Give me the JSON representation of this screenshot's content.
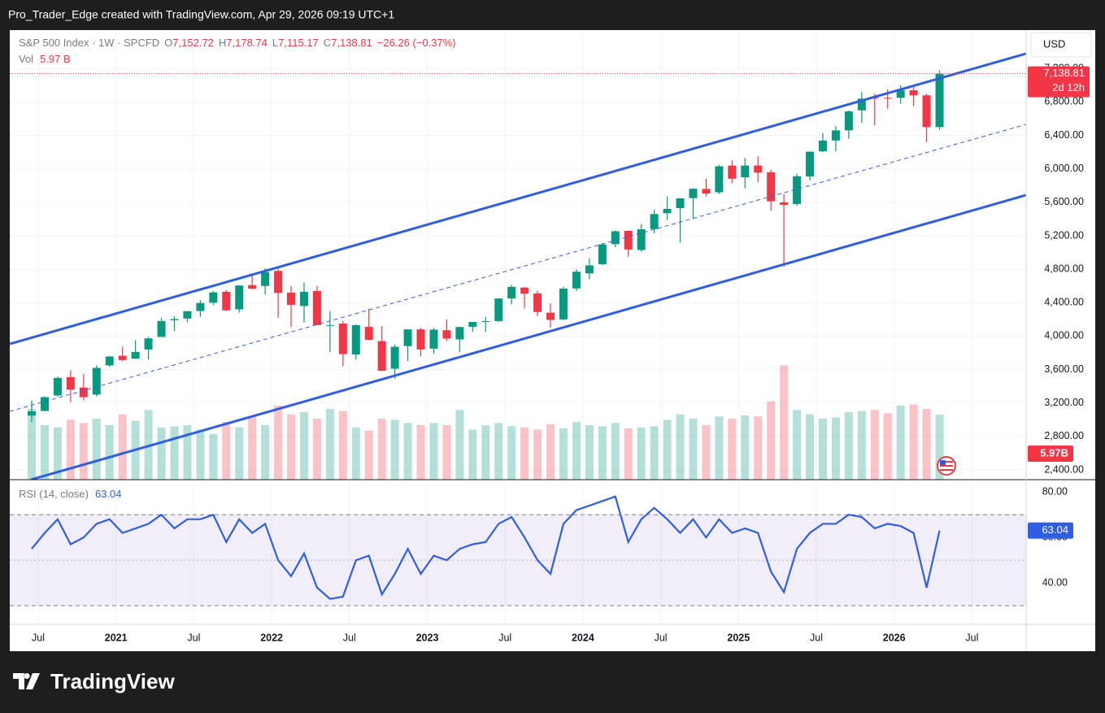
{
  "header": "Pro_Trader_Edge created with TradingView.com, Apr 29, 2026 09:19 UTC+1",
  "footer": "TradingView",
  "chart_data": {
    "type": "candlestick",
    "title": "S&P 500 Index · 1W · SPCFD",
    "currency": "USD",
    "legend": {
      "o": "O",
      "open": "7,152.72",
      "h": "H",
      "high": "7,178.74",
      "l": "L",
      "low": "7,115.17",
      "c": "C",
      "close": "7,138.81",
      "change": "−26.26 (−0.37%)",
      "vol": "Vol",
      "volume": "5.97 B"
    },
    "last_price": {
      "value": 7138.81,
      "label": "7,138.81"
    },
    "countdown": "2d 12h",
    "up_color": "#089981",
    "down_color": "#f23645",
    "grid": true,
    "categories": [
      "2020-06",
      "2020-07",
      "2020-08",
      "2020-09",
      "2020-10",
      "2020-11",
      "2020-12",
      "2021-01",
      "2021-02",
      "2021-03",
      "2021-04",
      "2021-05",
      "2021-06",
      "2021-07",
      "2021-08",
      "2021-09",
      "2021-10",
      "2021-11",
      "2021-12",
      "2022-01",
      "2022-02",
      "2022-03",
      "2022-04",
      "2022-05",
      "2022-06",
      "2022-07",
      "2022-08",
      "2022-09",
      "2022-10",
      "2022-11",
      "2022-12",
      "2023-01",
      "2023-02",
      "2023-03",
      "2023-04",
      "2023-05",
      "2023-06",
      "2023-07",
      "2023-08",
      "2023-09",
      "2023-10",
      "2023-11",
      "2023-12",
      "2024-01",
      "2024-02",
      "2024-03",
      "2024-04",
      "2024-05",
      "2024-06",
      "2024-07",
      "2024-08",
      "2024-09",
      "2024-10",
      "2024-11",
      "2024-12",
      "2025-01",
      "2025-02",
      "2025-03",
      "2025-04",
      "2025-05",
      "2025-06",
      "2025-07",
      "2025-08",
      "2025-09",
      "2025-10",
      "2025-11",
      "2025-12",
      "2026-01",
      "2026-02",
      "2026-03",
      "2026-04"
    ],
    "open": [
      3050,
      3105,
      3290,
      3510,
      3385,
      3300,
      3650,
      3765,
      3730,
      3840,
      3990,
      4190,
      4210,
      4300,
      4400,
      4530,
      4320,
      4610,
      4600,
      4780,
      4520,
      4360,
      4540,
      4130,
      4150,
      3780,
      4110,
      3940,
      3610,
      3880,
      4080,
      3850,
      4070,
      3960,
      4110,
      4170,
      4180,
      4450,
      4580,
      4510,
      4280,
      4200,
      4570,
      4750,
      4860,
      5100,
      5260,
      5030,
      5280,
      5470,
      5530,
      5650,
      5760,
      5720,
      6040,
      5900,
      6040,
      5960,
      5600,
      5580,
      5910,
      6210,
      6340,
      6460,
      6700,
      6850,
      6850,
      6850,
      6940,
      6880,
      6500
    ],
    "high": [
      3230,
      3280,
      3515,
      3590,
      3550,
      3650,
      3760,
      3870,
      3950,
      3990,
      4220,
      4240,
      4300,
      4430,
      4540,
      4550,
      4610,
      4745,
      4810,
      4820,
      4600,
      4640,
      4600,
      4300,
      4180,
      4140,
      4330,
      4120,
      3900,
      4080,
      4100,
      4100,
      4200,
      4110,
      4170,
      4230,
      4450,
      4610,
      4590,
      4540,
      4390,
      4590,
      4800,
      4930,
      5110,
      5265,
      5260,
      5340,
      5510,
      5670,
      5650,
      5770,
      5880,
      6050,
      6100,
      6130,
      6150,
      5990,
      5700,
      5940,
      6210,
      6430,
      6510,
      6700,
      6920,
      6900,
      6950,
      7000,
      6980,
      6900,
      7178.74
    ],
    "low": [
      2970,
      3100,
      3280,
      3210,
      3230,
      3280,
      3630,
      3700,
      3725,
      3720,
      3990,
      4060,
      4165,
      4230,
      4370,
      4300,
      4280,
      4560,
      4500,
      4220,
      4110,
      4160,
      4130,
      3810,
      3640,
      3720,
      3950,
      3580,
      3490,
      3700,
      3760,
      3790,
      3940,
      3810,
      4050,
      4050,
      4170,
      4380,
      4330,
      4240,
      4100,
      4190,
      4540,
      4680,
      4850,
      5060,
      4950,
      5010,
      5230,
      5390,
      5120,
      5400,
      5670,
      5700,
      5830,
      5770,
      5840,
      5500,
      4830,
      5560,
      5860,
      6200,
      6210,
      6360,
      6550,
      6520,
      6720,
      6780,
      6750,
      6320,
      6470
    ],
    "close": [
      3100,
      3270,
      3500,
      3360,
      3270,
      3620,
      3756,
      3714,
      3811,
      3973,
      4181,
      4204,
      4298,
      4395,
      4523,
      4308,
      4605,
      4567,
      4766,
      4516,
      4374,
      4530,
      4132,
      4132,
      3785,
      4130,
      3955,
      3586,
      3872,
      4080,
      3840,
      4077,
      3970,
      4109,
      4169,
      4180,
      4450,
      4589,
      4508,
      4288,
      4194,
      4568,
      4770,
      4846,
      5096,
      5254,
      5036,
      5278,
      5460,
      5522,
      5648,
      5762,
      5705,
      6032,
      5882,
      6040,
      5955,
      5612,
      5569,
      5912,
      6205,
      6339,
      6460,
      6688,
      6840,
      6849,
      6845,
      6940,
      6880,
      6500,
      7138.81
    ],
    "ylim": [
      2283,
      7660
    ],
    "yticks": [
      {
        "value": 2400,
        "label": "2,400.00"
      },
      {
        "value": 2800,
        "label": "2,800.00"
      },
      {
        "value": 3200,
        "label": "3,200.00"
      },
      {
        "value": 3600,
        "label": "3,600.00"
      },
      {
        "value": 4000,
        "label": "4,000.00"
      },
      {
        "value": 4400,
        "label": "4,400.00"
      },
      {
        "value": 4800,
        "label": "4,800.00"
      },
      {
        "value": 5200,
        "label": "5,200.00"
      },
      {
        "value": 5600,
        "label": "5,600.00"
      },
      {
        "value": 6000,
        "label": "6,000.00"
      },
      {
        "value": 6400,
        "label": "6,400.00"
      },
      {
        "value": 6800,
        "label": "6,800.00"
      },
      {
        "value": 7200,
        "label": "7,200.00"
      }
    ],
    "xticks": [
      {
        "value": "2020-07",
        "label": "Jul"
      },
      {
        "value": "2021-01",
        "label": "2021"
      },
      {
        "value": "2021-07",
        "label": "Jul"
      },
      {
        "value": "2022-01",
        "label": "2022"
      },
      {
        "value": "2022-07",
        "label": "Jul"
      },
      {
        "value": "2023-01",
        "label": "2023"
      },
      {
        "value": "2023-07",
        "label": "Jul"
      },
      {
        "value": "2024-01",
        "label": "2024"
      },
      {
        "value": "2024-07",
        "label": "Jul"
      },
      {
        "value": "2025-01",
        "label": "2025"
      },
      {
        "value": "2025-07",
        "label": "Jul"
      },
      {
        "value": "2026-01",
        "label": "2026"
      },
      {
        "value": "2026-07",
        "label": "Jul"
      }
    ],
    "volume": {
      "label": "5.97B",
      "values": [
        6.5,
        5.0,
        4.8,
        5.5,
        5.2,
        5.6,
        5.0,
        6.0,
        5.4,
        6.4,
        4.8,
        4.9,
        5.0,
        4.6,
        4.2,
        5.3,
        4.8,
        5.8,
        5.0,
        6.8,
        6.0,
        6.2,
        5.6,
        6.5,
        6.3,
        4.8,
        4.5,
        5.6,
        5.5,
        5.2,
        5.0,
        5.2,
        5.0,
        6.4,
        4.6,
        5.0,
        5.2,
        4.9,
        4.8,
        4.6,
        5.1,
        4.7,
        5.3,
        5.0,
        4.9,
        5.2,
        4.7,
        4.8,
        4.9,
        5.5,
        6.0,
        5.6,
        5.0,
        5.8,
        5.6,
        5.9,
        5.8,
        7.2,
        10.5,
        6.4,
        6.0,
        5.6,
        5.7,
        6.2,
        6.3,
        6.4,
        6.1,
        6.8,
        6.9,
        6.5,
        5.97
      ]
    },
    "rsi": {
      "name": "RSI (14, close)",
      "color": "#2f5fe0",
      "values": [
        55,
        62,
        68,
        57,
        60,
        66,
        68,
        62,
        64,
        66,
        70,
        64,
        68,
        68,
        70,
        58,
        68,
        62,
        66,
        50,
        43,
        53,
        38,
        33,
        34,
        50,
        52,
        35,
        44,
        55,
        44,
        52,
        50,
        55,
        57,
        58,
        66,
        69,
        60,
        50,
        44,
        66,
        72,
        74,
        76,
        78,
        58,
        68,
        73,
        68,
        62,
        68,
        60,
        68,
        62,
        64,
        62,
        45,
        36,
        55,
        62,
        66,
        66,
        70,
        69,
        64,
        66,
        65,
        62,
        38,
        63.04
      ],
      "ylim": [
        21.8,
        85.4
      ],
      "yticks": [
        {
          "value": 80,
          "label": "80.00"
        },
        {
          "value": 60,
          "label": "60.00"
        },
        {
          "value": 40,
          "label": "40.00"
        }
      ],
      "levels": [
        70,
        50,
        30
      ]
    }
  }
}
